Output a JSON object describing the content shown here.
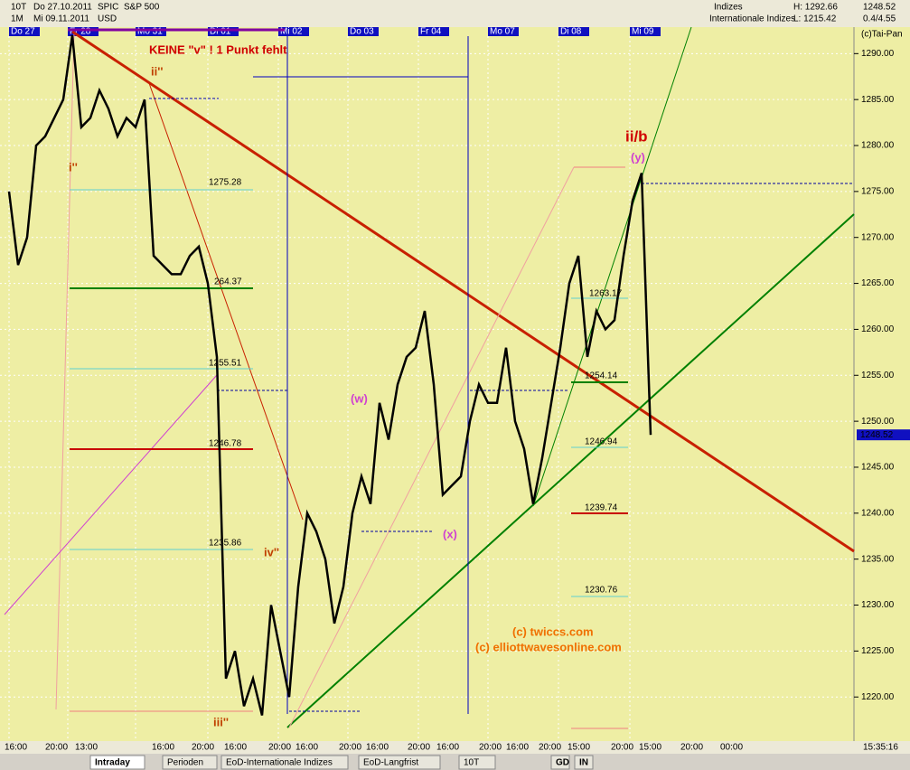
{
  "header": {
    "period": "10T",
    "start_date": "Do 27.10.2011",
    "code": "SPIC",
    "name": "S&P 500",
    "interval": "1M",
    "end_date": "Mi 09.11.2011",
    "currency": "USD",
    "group": "Indizes",
    "subgroup": "Internationale Indizes",
    "high": "H: 1292.66",
    "low": "L: 1215.42",
    "last": "1248.52",
    "change": "0.4/4.55",
    "copyright": "(c)Tai-Pan"
  },
  "days": [
    "Do 27",
    "Fr 28",
    "Mo 31",
    "Di 01",
    "Mi 02",
    "Do 03",
    "Fr 04",
    "Mo 07",
    "Di 08",
    "Mi 09"
  ],
  "times": [
    "16:00",
    "20:00",
    "13:00",
    "16:00",
    "20:00",
    "16:00",
    "20:00",
    "16:00",
    "20:00",
    "16:00",
    "20:00",
    "16:00",
    "20:00",
    "16:00",
    "20:00",
    "15:00",
    "20:00",
    "15:00",
    "20:00",
    "00:00"
  ],
  "clock": "15:35:16",
  "annotations": {
    "note": "KEINE \"v\" ! 1 Punkt fehlt",
    "ii": "ii''",
    "i": "i''",
    "iii": "iii''",
    "iv": "iv''",
    "w": "(w)",
    "x": "(x)",
    "y": "(y)",
    "iib": "ii/b",
    "credit1": "(c) twiccs.com",
    "credit2": "(c) elliottwavesonline.com"
  },
  "levels": [
    "1275.28",
    "264.37",
    "1255.51",
    "1246.78",
    "1235.86",
    "1263.17",
    "1254.14",
    "1246.94",
    "1239.74",
    "1230.76"
  ],
  "tabs": [
    "Intraday",
    "Perioden",
    "EoD-Internationale Indizes",
    "EoD-Langfrist",
    "10T",
    "GD",
    "IN"
  ],
  "chart_data": {
    "type": "line",
    "price_tag": "1248.52",
    "ylim": [
      1215.4,
      1291.9
    ],
    "yticks": [
      {
        "value": 1220,
        "label": "1220.00"
      },
      {
        "value": 1225,
        "label": "1225.00"
      },
      {
        "value": 1230,
        "label": "1230.00"
      },
      {
        "value": 1235,
        "label": "1235.00"
      },
      {
        "value": 1240,
        "label": "1240.00"
      },
      {
        "value": 1245,
        "label": "1245.00"
      },
      {
        "value": 1250,
        "label": "1250.00"
      },
      {
        "value": 1255,
        "label": "1255.00"
      },
      {
        "value": 1260,
        "label": "1260.00"
      },
      {
        "value": 1265,
        "label": "1265.00"
      },
      {
        "value": 1270,
        "label": "1270.00"
      },
      {
        "value": 1275,
        "label": "1275.00"
      },
      {
        "value": 1280,
        "label": "1280.00"
      },
      {
        "value": 1285,
        "label": "1285.00"
      },
      {
        "value": 1290,
        "label": "1290.00"
      }
    ],
    "series": [
      {
        "color": "#000000",
        "values": [
          1275,
          1267,
          1270,
          1280,
          1281,
          1283,
          1285,
          1292,
          1282,
          1283,
          1286,
          1284,
          1281,
          1283,
          1282,
          1285,
          1268,
          1267,
          1266,
          1266,
          1268,
          1269,
          1265,
          1257,
          1222,
          1225,
          1219,
          1222,
          1218,
          1230,
          1225,
          1220,
          1232,
          1240,
          1238,
          1235,
          1228,
          1232,
          1240,
          1244,
          1241,
          1252,
          1248,
          1254,
          1257,
          1258,
          1262,
          1254,
          1242,
          1243,
          1244,
          1250,
          1254,
          1252,
          1252,
          1258,
          1250,
          1247,
          1241,
          1246,
          1252,
          1258,
          1265,
          1268,
          1257,
          1262,
          1260,
          1261,
          1268,
          1274,
          1277,
          1248.52
        ]
      }
    ]
  }
}
